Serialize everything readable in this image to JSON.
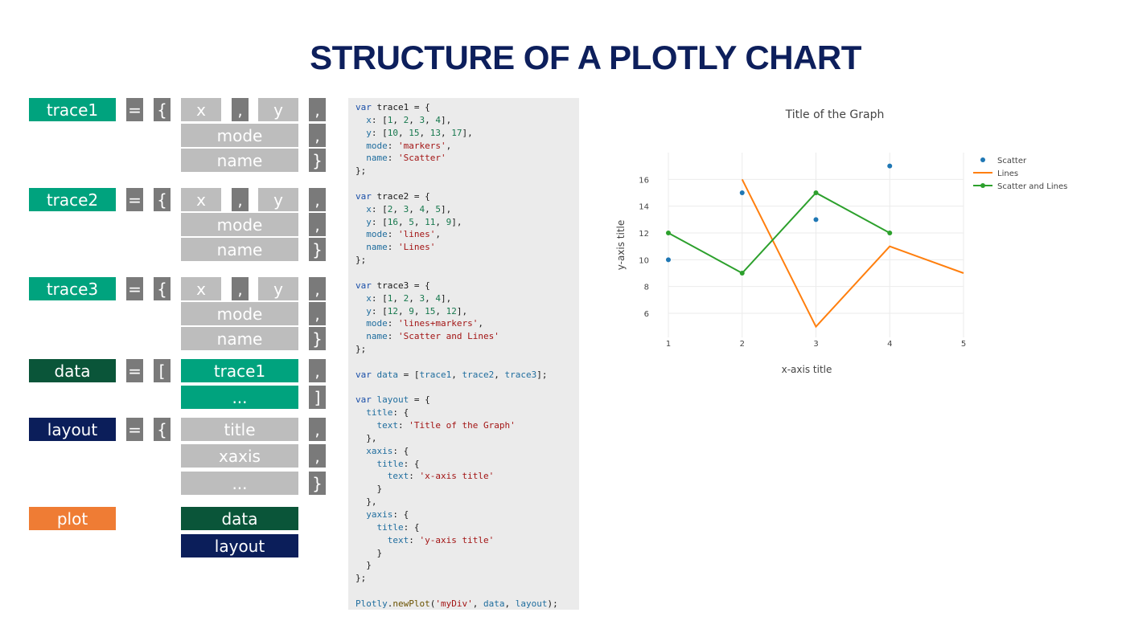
{
  "page_title": "STRUCTURE OF A PLOTLY CHART",
  "diagram": {
    "trace1_label": "trace1",
    "trace2_label": "trace2",
    "trace3_label": "trace3",
    "data_label": "data",
    "layout_label": "layout",
    "plot_label": "plot",
    "equals": "=",
    "open_brace": "{",
    "close_brace": "}",
    "open_bracket": "[",
    "close_bracket": "]",
    "comma": ",",
    "x": "x",
    "y": "y",
    "mode": "mode",
    "name": "name",
    "data_item1": "trace1",
    "ellipsis": "...",
    "layout_title": "title",
    "layout_xaxis": "xaxis",
    "plot_data": "data",
    "plot_layout": "layout"
  },
  "code_lines": [
    [
      [
        "kw",
        "var"
      ],
      [
        "",
        "trace1 = {"
      ]
    ],
    [
      [
        "",
        "  "
      ],
      [
        "pr",
        "x"
      ],
      [
        "",
        ": ["
      ],
      [
        "nm",
        "1"
      ],
      [
        "",
        ", "
      ],
      [
        "nm",
        "2"
      ],
      [
        "",
        ", "
      ],
      [
        "nm",
        "3"
      ],
      [
        "",
        ", "
      ],
      [
        "nm",
        "4"
      ],
      [
        "",
        "],"
      ]
    ],
    [
      [
        "",
        "  "
      ],
      [
        "pr",
        "y"
      ],
      [
        "",
        ": ["
      ],
      [
        "nm",
        "10"
      ],
      [
        "",
        ", "
      ],
      [
        "nm",
        "15"
      ],
      [
        "",
        ", "
      ],
      [
        "nm",
        "13"
      ],
      [
        "",
        ", "
      ],
      [
        "nm",
        "17"
      ],
      [
        "",
        "],"
      ]
    ],
    [
      [
        "",
        "  "
      ],
      [
        "pr",
        "mode"
      ],
      [
        "",
        ": "
      ],
      [
        "st",
        "'markers'"
      ],
      [
        "",
        ","
      ]
    ],
    [
      [
        "",
        "  "
      ],
      [
        "pr",
        "name"
      ],
      [
        "",
        ": "
      ],
      [
        "st",
        "'Scatter'"
      ]
    ],
    [
      [
        "",
        "};"
      ]
    ],
    [
      [
        "",
        ""
      ]
    ],
    [
      [
        "kw",
        "var"
      ],
      [
        "",
        "trace2 = {"
      ]
    ],
    [
      [
        "",
        "  "
      ],
      [
        "pr",
        "x"
      ],
      [
        "",
        ": ["
      ],
      [
        "nm",
        "2"
      ],
      [
        "",
        ", "
      ],
      [
        "nm",
        "3"
      ],
      [
        "",
        ", "
      ],
      [
        "nm",
        "4"
      ],
      [
        "",
        ", "
      ],
      [
        "nm",
        "5"
      ],
      [
        "",
        "],"
      ]
    ],
    [
      [
        "",
        "  "
      ],
      [
        "pr",
        "y"
      ],
      [
        "",
        ": ["
      ],
      [
        "nm",
        "16"
      ],
      [
        "",
        ", "
      ],
      [
        "nm",
        "5"
      ],
      [
        "",
        ", "
      ],
      [
        "nm",
        "11"
      ],
      [
        "",
        ", "
      ],
      [
        "nm",
        "9"
      ],
      [
        "",
        "],"
      ]
    ],
    [
      [
        "",
        "  "
      ],
      [
        "pr",
        "mode"
      ],
      [
        "",
        ": "
      ],
      [
        "st",
        "'lines'"
      ],
      [
        "",
        ","
      ]
    ],
    [
      [
        "",
        "  "
      ],
      [
        "pr",
        "name"
      ],
      [
        "",
        ": "
      ],
      [
        "st",
        "'Lines'"
      ]
    ],
    [
      [
        "",
        "};"
      ]
    ],
    [
      [
        "",
        ""
      ]
    ],
    [
      [
        "kw",
        "var"
      ],
      [
        "",
        "trace3 = {"
      ]
    ],
    [
      [
        "",
        "  "
      ],
      [
        "pr",
        "x"
      ],
      [
        "",
        ": ["
      ],
      [
        "nm",
        "1"
      ],
      [
        "",
        ", "
      ],
      [
        "nm",
        "2"
      ],
      [
        "",
        ", "
      ],
      [
        "nm",
        "3"
      ],
      [
        "",
        ", "
      ],
      [
        "nm",
        "4"
      ],
      [
        "",
        "],"
      ]
    ],
    [
      [
        "",
        "  "
      ],
      [
        "pr",
        "y"
      ],
      [
        "",
        ": ["
      ],
      [
        "nm",
        "12"
      ],
      [
        "",
        ", "
      ],
      [
        "nm",
        "9"
      ],
      [
        "",
        ", "
      ],
      [
        "nm",
        "15"
      ],
      [
        "",
        ", "
      ],
      [
        "nm",
        "12"
      ],
      [
        "",
        "],"
      ]
    ],
    [
      [
        "",
        "  "
      ],
      [
        "pr",
        "mode"
      ],
      [
        "",
        ": "
      ],
      [
        "st",
        "'lines+markers'"
      ],
      [
        "",
        ","
      ]
    ],
    [
      [
        "",
        "  "
      ],
      [
        "pr",
        "name"
      ],
      [
        "",
        ": "
      ],
      [
        "st",
        "'Scatter and Lines'"
      ]
    ],
    [
      [
        "",
        "};"
      ]
    ],
    [
      [
        "",
        ""
      ]
    ],
    [
      [
        "kw",
        "var"
      ],
      [
        "",
        ""
      ],
      [
        "pr",
        "data"
      ],
      [
        "",
        " = ["
      ],
      [
        "pr",
        "trace1"
      ],
      [
        "",
        ", "
      ],
      [
        "pr",
        "trace2"
      ],
      [
        "",
        ", "
      ],
      [
        "pr",
        "trace3"
      ],
      [
        "",
        "];"
      ]
    ],
    [
      [
        "",
        ""
      ]
    ],
    [
      [
        "kw",
        "var"
      ],
      [
        "",
        ""
      ],
      [
        "pr",
        "layout"
      ],
      [
        "",
        " = {"
      ]
    ],
    [
      [
        "",
        "  "
      ],
      [
        "pr",
        "title"
      ],
      [
        "",
        ": {"
      ]
    ],
    [
      [
        "",
        "    "
      ],
      [
        "pr",
        "text"
      ],
      [
        "",
        ": "
      ],
      [
        "st",
        "'Title of the Graph'"
      ]
    ],
    [
      [
        "",
        "  },"
      ]
    ],
    [
      [
        "",
        "  "
      ],
      [
        "pr",
        "xaxis"
      ],
      [
        "",
        ": {"
      ]
    ],
    [
      [
        "",
        "    "
      ],
      [
        "pr",
        "title"
      ],
      [
        "",
        ": {"
      ]
    ],
    [
      [
        "",
        "      "
      ],
      [
        "pr",
        "text"
      ],
      [
        "",
        ": "
      ],
      [
        "st",
        "'x-axis title'"
      ]
    ],
    [
      [
        "",
        "    }"
      ]
    ],
    [
      [
        "",
        "  },"
      ]
    ],
    [
      [
        "",
        "  "
      ],
      [
        "pr",
        "yaxis"
      ],
      [
        "",
        ": {"
      ]
    ],
    [
      [
        "",
        "    "
      ],
      [
        "pr",
        "title"
      ],
      [
        "",
        ": {"
      ]
    ],
    [
      [
        "",
        "      "
      ],
      [
        "pr",
        "text"
      ],
      [
        "",
        ": "
      ],
      [
        "st",
        "'y-axis title'"
      ]
    ],
    [
      [
        "",
        "    }"
      ]
    ],
    [
      [
        "",
        "  }"
      ]
    ],
    [
      [
        "",
        "};"
      ]
    ],
    [
      [
        "",
        ""
      ]
    ],
    [
      [
        "pr",
        "Plotly"
      ],
      [
        "",
        "."
      ],
      [
        "fn",
        "newPlot"
      ],
      [
        "",
        "("
      ],
      [
        "st",
        "'myDiv'"
      ],
      [
        "",
        ", "
      ],
      [
        "pr",
        "data"
      ],
      [
        "",
        ", "
      ],
      [
        "pr",
        "layout"
      ],
      [
        "",
        ");"
      ]
    ]
  ],
  "chart_data": {
    "type": "scatter",
    "title": "Title of the Graph",
    "xlabel": "x-axis title",
    "ylabel": "y-axis title",
    "xlim": [
      1,
      5
    ],
    "ylim": [
      4.2,
      18
    ],
    "xticks": [
      1,
      2,
      3,
      4,
      5
    ],
    "yticks": [
      6,
      8,
      10,
      12,
      14,
      16
    ],
    "grid": true,
    "legend_position": "top-right",
    "series": [
      {
        "name": "Scatter",
        "mode": "markers",
        "color": "#1f77b4",
        "x": [
          1,
          2,
          3,
          4
        ],
        "y": [
          10,
          15,
          13,
          17
        ]
      },
      {
        "name": "Lines",
        "mode": "lines",
        "color": "#ff7f0e",
        "x": [
          2,
          3,
          4,
          5
        ],
        "y": [
          16,
          5,
          11,
          9
        ]
      },
      {
        "name": "Scatter and Lines",
        "mode": "lines+markers",
        "color": "#2ca02c",
        "x": [
          1,
          2,
          3,
          4
        ],
        "y": [
          12,
          9,
          15,
          12
        ]
      }
    ]
  }
}
